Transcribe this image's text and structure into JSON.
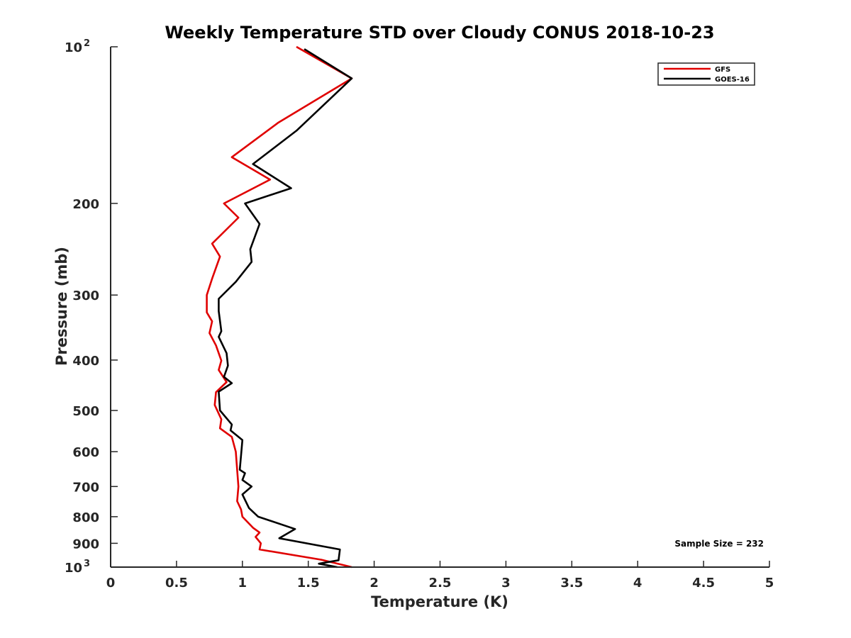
{
  "chart_data": {
    "type": "line",
    "title": "Weekly Temperature STD over Cloudy CONUS 2018-10-23",
    "xlabel": "Temperature (K)",
    "ylabel": "Pressure (mb)",
    "xlim": [
      0,
      5
    ],
    "ylim": [
      100,
      1000
    ],
    "yscale": "log",
    "y_reversed": true,
    "grid": false,
    "legend_position": "top-right",
    "x_ticks": [
      0,
      0.5,
      1,
      1.5,
      2,
      2.5,
      3,
      3.5,
      4,
      4.5,
      5
    ],
    "x_tick_labels": [
      "0",
      "0.5",
      "1",
      "1.5",
      "2",
      "2.5",
      "3",
      "3.5",
      "4",
      "4.5",
      "5"
    ],
    "y_ticks": [
      {
        "value": 100,
        "base": "10",
        "exp": "2"
      },
      {
        "value": 200,
        "label": "200"
      },
      {
        "value": 300,
        "label": "300"
      },
      {
        "value": 400,
        "label": "400"
      },
      {
        "value": 500,
        "label": "500"
      },
      {
        "value": 600,
        "label": "600"
      },
      {
        "value": 700,
        "label": "700"
      },
      {
        "value": 800,
        "label": "800"
      },
      {
        "value": 900,
        "label": "900"
      },
      {
        "value": 1000,
        "base": "10",
        "exp": "3"
      }
    ],
    "annotation": "Sample Size = 232",
    "series": [
      {
        "name": "GFS",
        "color": "#e00000",
        "points": [
          [
            1.41,
            100
          ],
          [
            1.83,
            115
          ],
          [
            1.27,
            140
          ],
          [
            0.92,
            163
          ],
          [
            1.21,
            180
          ],
          [
            0.86,
            200
          ],
          [
            0.97,
            213
          ],
          [
            0.77,
            239
          ],
          [
            0.83,
            253
          ],
          [
            0.77,
            279
          ],
          [
            0.73,
            300
          ],
          [
            0.73,
            324
          ],
          [
            0.77,
            337
          ],
          [
            0.75,
            355
          ],
          [
            0.8,
            375
          ],
          [
            0.84,
            401
          ],
          [
            0.82,
            418
          ],
          [
            0.88,
            441
          ],
          [
            0.8,
            461
          ],
          [
            0.79,
            488
          ],
          [
            0.84,
            520
          ],
          [
            0.83,
            541
          ],
          [
            0.92,
            562
          ],
          [
            0.95,
            600
          ],
          [
            0.96,
            650
          ],
          [
            0.97,
            700
          ],
          [
            0.96,
            747
          ],
          [
            0.99,
            775
          ],
          [
            1.0,
            800
          ],
          [
            1.08,
            840
          ],
          [
            1.13,
            858
          ],
          [
            1.1,
            875
          ],
          [
            1.14,
            900
          ],
          [
            1.13,
            925
          ],
          [
            1.6,
            968
          ],
          [
            1.83,
            1000
          ]
        ]
      },
      {
        "name": "GOES-16",
        "color": "#000000",
        "points": [
          [
            1.47,
            101
          ],
          [
            1.83,
            115
          ],
          [
            1.41,
            145
          ],
          [
            1.08,
            168
          ],
          [
            1.37,
            187
          ],
          [
            1.02,
            200
          ],
          [
            1.13,
            219
          ],
          [
            1.06,
            245
          ],
          [
            1.07,
            259
          ],
          [
            0.95,
            283
          ],
          [
            0.82,
            305
          ],
          [
            0.82,
            322
          ],
          [
            0.84,
            352
          ],
          [
            0.82,
            361
          ],
          [
            0.88,
            388
          ],
          [
            0.89,
            410
          ],
          [
            0.86,
            431
          ],
          [
            0.92,
            443
          ],
          [
            0.82,
            460
          ],
          [
            0.83,
            500
          ],
          [
            0.92,
            532
          ],
          [
            0.91,
            546
          ],
          [
            1.0,
            570
          ],
          [
            0.99,
            610
          ],
          [
            0.98,
            650
          ],
          [
            1.02,
            660
          ],
          [
            1.0,
            680
          ],
          [
            1.07,
            700
          ],
          [
            1.0,
            725
          ],
          [
            1.05,
            770
          ],
          [
            1.12,
            800
          ],
          [
            1.4,
            845
          ],
          [
            1.28,
            880
          ],
          [
            1.74,
            925
          ],
          [
            1.73,
            970
          ],
          [
            1.58,
            985
          ],
          [
            1.72,
            1000
          ]
        ]
      }
    ]
  }
}
